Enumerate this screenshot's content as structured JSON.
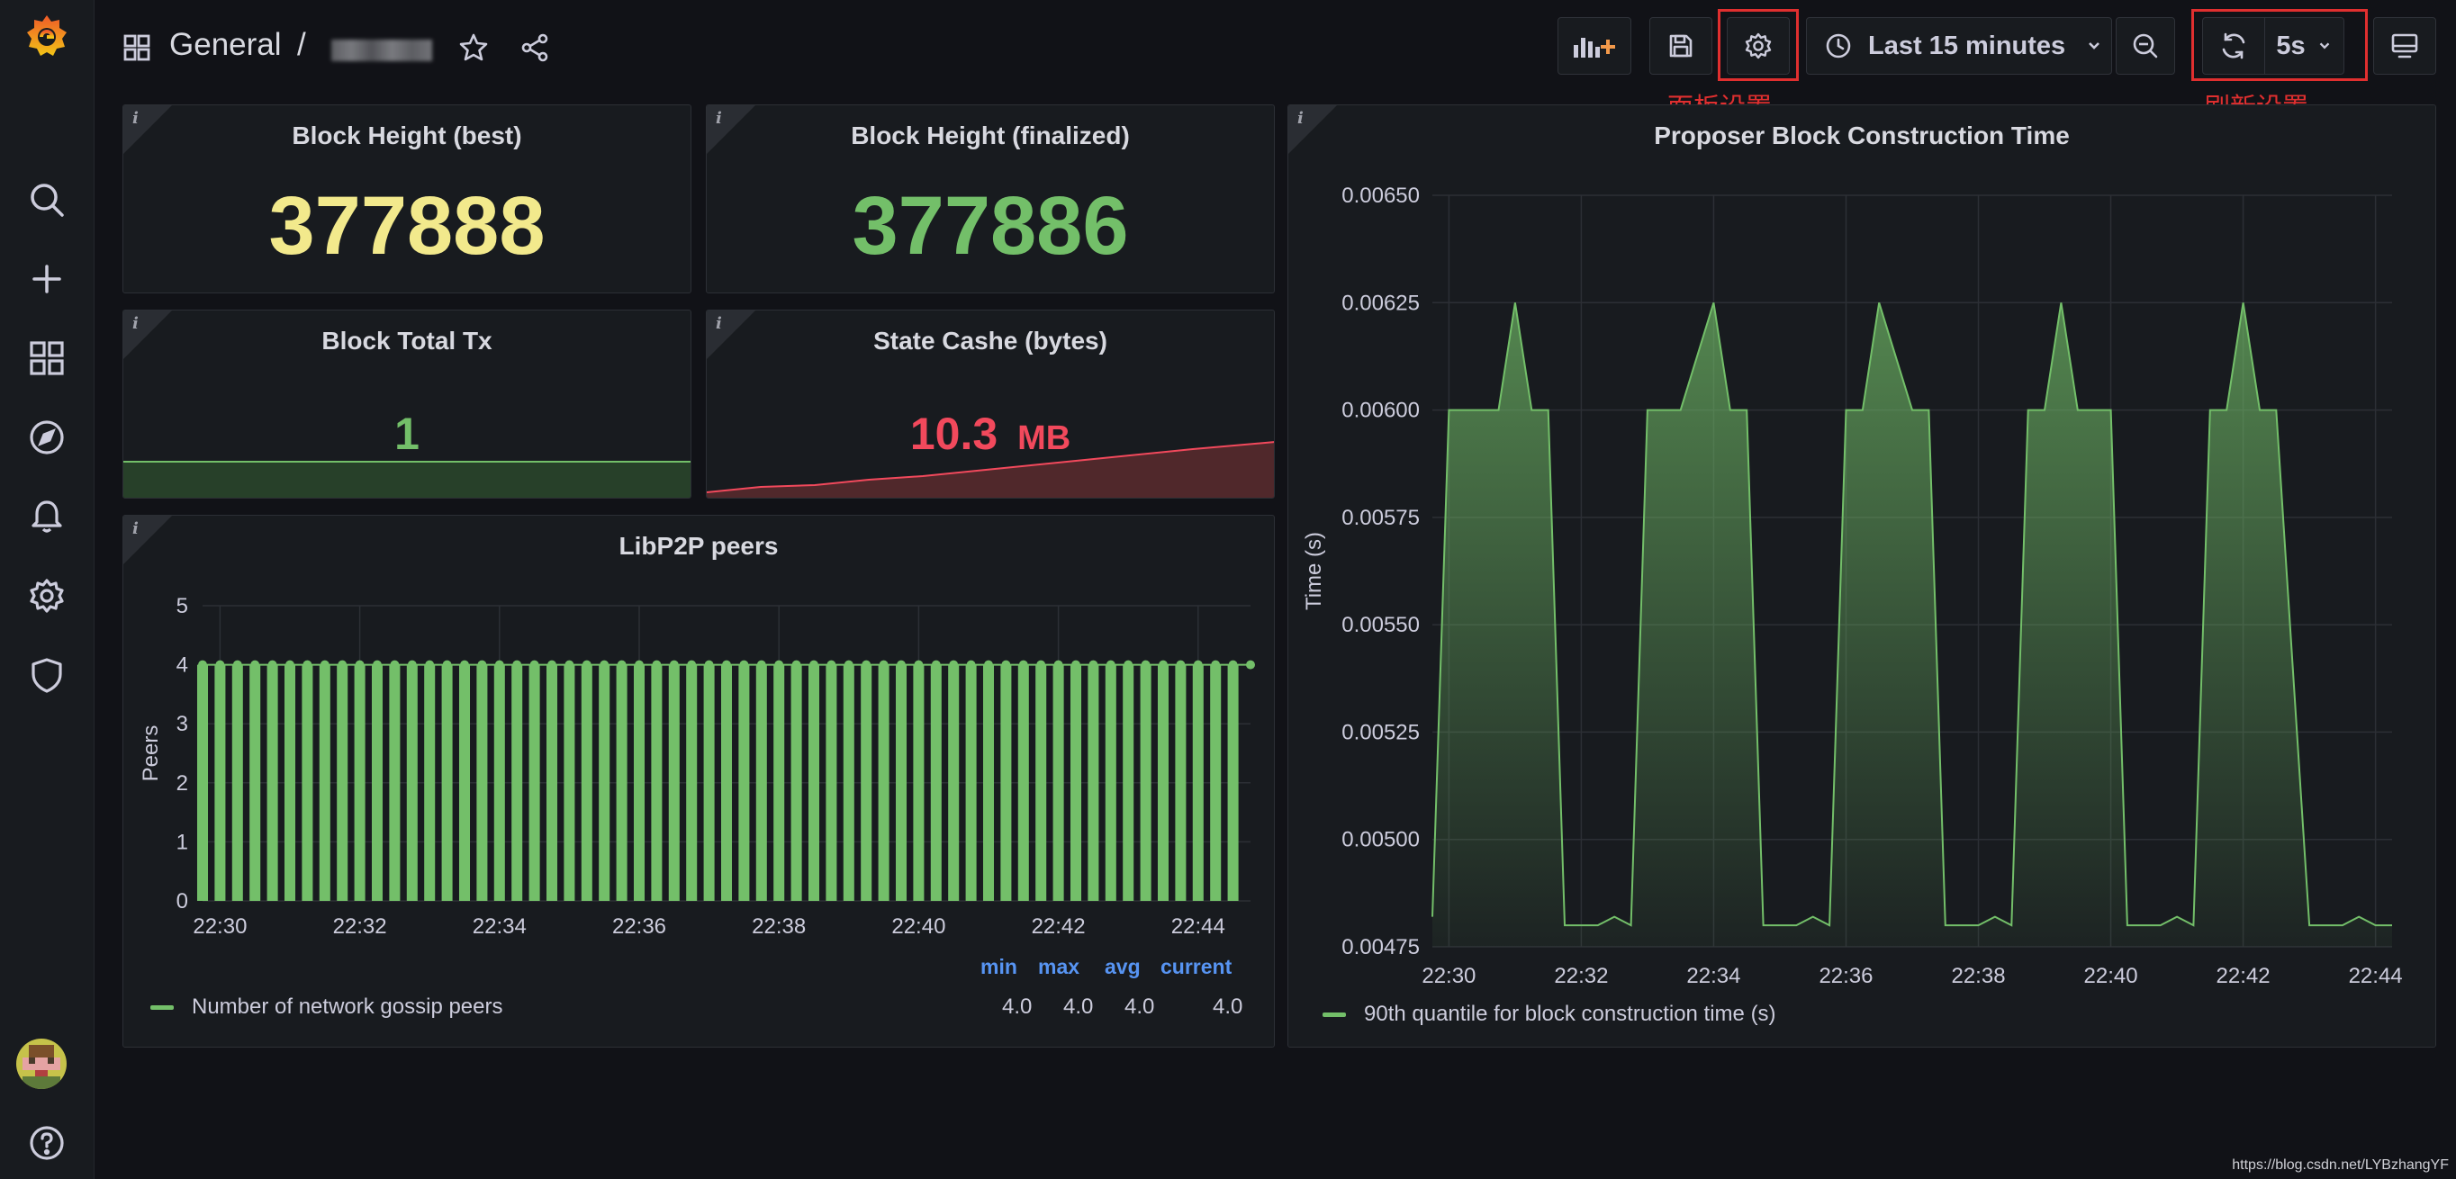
{
  "breadcrumb": {
    "folder": "General",
    "separator": "/"
  },
  "toolbar": {
    "time_range": "Last 15 minutes",
    "refresh_interval": "5s"
  },
  "annotations": {
    "panel_settings": "面板设置",
    "refresh_settings": "刷新设置"
  },
  "colors": {
    "yellow": "#f2e98c",
    "green": "#73bf69",
    "red": "#f2495c",
    "blue": "#5794f2",
    "annotation_red": "#e02f2f"
  },
  "panels": {
    "block_height_best": {
      "title": "Block Height (best)",
      "value": "377888"
    },
    "block_height_finalized": {
      "title": "Block Height (finalized)",
      "value": "377886"
    },
    "block_total_tx": {
      "title": "Block Total Tx",
      "value": "1"
    },
    "state_cache": {
      "title": "State Cashe (bytes)",
      "value": "10.3",
      "unit": "MB"
    },
    "libp2p": {
      "title": "LibP2P peers",
      "ylabel": "Peers",
      "legend": {
        "series": "Number of network gossip peers",
        "headers": {
          "min": "min",
          "max": "max",
          "avg": "avg",
          "current": "current"
        },
        "values": {
          "min": "4.0",
          "max": "4.0",
          "avg": "4.0",
          "current": "4.0"
        }
      }
    },
    "proposer": {
      "title": "Proposer Block Construction Time",
      "ylabel": "Time (s)",
      "legend": {
        "series": "90th quantile for block construction time (s)"
      }
    }
  },
  "chart_data": [
    {
      "type": "bar",
      "title": "LibP2P peers",
      "ylabel": "Peers",
      "ylim": [
        0,
        5
      ],
      "y_ticks": [
        0,
        1,
        2,
        3,
        4,
        5
      ],
      "x_ticks": [
        "22:30",
        "22:32",
        "22:34",
        "22:36",
        "22:38",
        "22:40",
        "22:42",
        "22:44"
      ],
      "x_range": [
        "22:29:45",
        "22:44:45"
      ],
      "interval_seconds": 15,
      "constant_value": 4,
      "grid": true,
      "series": [
        {
          "name": "Number of network gossip peers",
          "color": "#73bf69"
        }
      ]
    },
    {
      "type": "area",
      "title": "Proposer Block Construction Time",
      "ylabel": "Time (s)",
      "ylim": [
        0.00475,
        0.0065
      ],
      "y_ticks": [
        "0.00475",
        "0.00500",
        "0.00525",
        "0.00550",
        "0.00575",
        "0.00600",
        "0.00625",
        "0.00650"
      ],
      "x_ticks": [
        "22:30",
        "22:32",
        "22:34",
        "22:36",
        "22:38",
        "22:40",
        "22:42",
        "22:44"
      ],
      "grid": true,
      "series": [
        {
          "name": "90th quantile for block construction time (s)",
          "color": "#73bf69",
          "x": [
            "22:29:45",
            "22:30:00",
            "22:30:45",
            "22:31:00",
            "22:31:15",
            "22:31:30",
            "22:31:45",
            "22:32:00",
            "22:32:15",
            "22:32:30",
            "22:32:45",
            "22:33:00",
            "22:33:30",
            "22:34:00",
            "22:34:15",
            "22:34:30",
            "22:34:45",
            "22:35:00",
            "22:35:15",
            "22:35:30",
            "22:35:45",
            "22:36:00",
            "22:36:15",
            "22:36:30",
            "22:37:00",
            "22:37:15",
            "22:37:30",
            "22:37:45",
            "22:38:00",
            "22:38:15",
            "22:38:30",
            "22:38:45",
            "22:39:00",
            "22:39:15",
            "22:39:30",
            "22:40:00",
            "22:40:15",
            "22:40:30",
            "22:40:45",
            "22:41:00",
            "22:41:15",
            "22:41:30",
            "22:41:45",
            "22:42:00",
            "22:42:15",
            "22:42:30",
            "22:43:00",
            "22:43:15",
            "22:43:30",
            "22:43:45",
            "22:44:00",
            "22:44:15"
          ],
          "y": [
            0.00482,
            0.006,
            0.006,
            0.00625,
            0.006,
            0.006,
            0.0048,
            0.0048,
            0.0048,
            0.00482,
            0.0048,
            0.006,
            0.006,
            0.00625,
            0.006,
            0.006,
            0.0048,
            0.0048,
            0.0048,
            0.00482,
            0.0048,
            0.006,
            0.006,
            0.00625,
            0.006,
            0.006,
            0.0048,
            0.0048,
            0.0048,
            0.00482,
            0.0048,
            0.006,
            0.006,
            0.00625,
            0.006,
            0.006,
            0.0048,
            0.0048,
            0.0048,
            0.00482,
            0.0048,
            0.006,
            0.006,
            0.00625,
            0.006,
            0.006,
            0.0048,
            0.0048,
            0.0048,
            0.00482,
            0.0048,
            0.0048
          ]
        }
      ]
    }
  ]
}
